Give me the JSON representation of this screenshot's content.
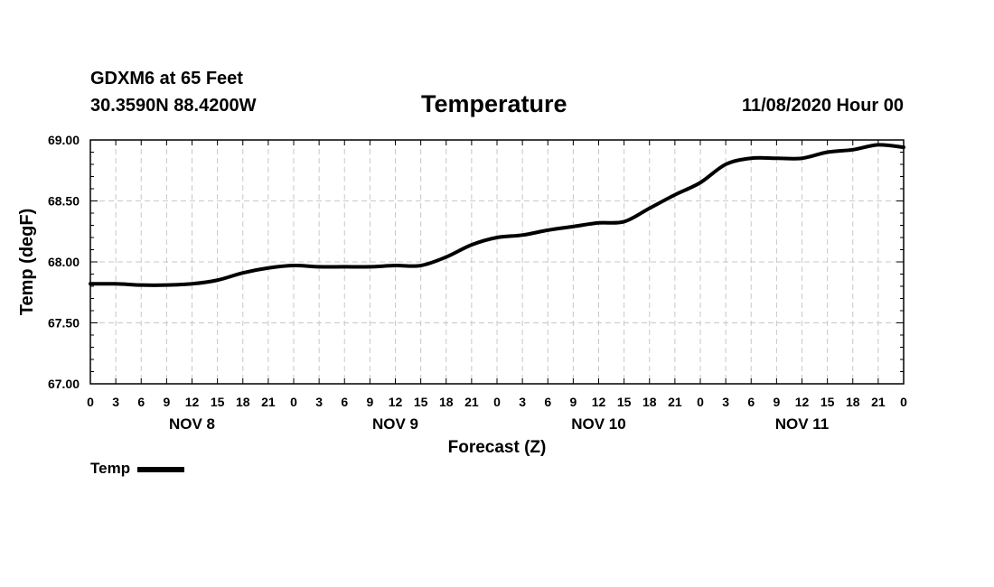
{
  "header": {
    "station": "GDXM6 at 65 Feet",
    "coords": "30.3590N 88.4200W",
    "title": "Temperature",
    "timestamp": "11/08/2020 Hour 00"
  },
  "legend": {
    "label": "Temp",
    "color": "#000000"
  },
  "chart_data": {
    "type": "line",
    "title": "Temperature",
    "xlabel": "Forecast (Z)",
    "ylabel": "Temp (degF)",
    "ylim": [
      67.0,
      69.0
    ],
    "y_ticks": [
      "69.00",
      "68.50",
      "68.00",
      "67.50",
      "67.00"
    ],
    "x_range_hours": [
      0,
      96
    ],
    "x_tick_labels": [
      "0",
      "3",
      "6",
      "9",
      "12",
      "15",
      "18",
      "21",
      "0",
      "3",
      "6",
      "9",
      "12",
      "15",
      "18",
      "21",
      "0",
      "3",
      "6",
      "9",
      "12",
      "15",
      "18",
      "21",
      "0",
      "3",
      "6",
      "9",
      "12",
      "15",
      "18",
      "21",
      "0"
    ],
    "day_labels": [
      {
        "label": "NOV 8",
        "hour": 12
      },
      {
        "label": "NOV 9",
        "hour": 36
      },
      {
        "label": "NOV 10",
        "hour": 60
      },
      {
        "label": "NOV 11",
        "hour": 84
      }
    ],
    "grid": true,
    "series": [
      {
        "name": "Temp",
        "color": "#000000",
        "x": [
          0,
          3,
          6,
          9,
          12,
          15,
          18,
          21,
          24,
          27,
          30,
          33,
          36,
          39,
          42,
          45,
          48,
          51,
          54,
          57,
          60,
          63,
          66,
          69,
          72,
          75,
          78,
          81,
          84,
          87,
          90,
          93,
          96
        ],
        "values": [
          67.82,
          67.82,
          67.81,
          67.81,
          67.82,
          67.85,
          67.91,
          67.95,
          67.97,
          67.96,
          67.96,
          67.96,
          67.97,
          67.97,
          68.04,
          68.14,
          68.2,
          68.22,
          68.26,
          68.29,
          68.32,
          68.33,
          68.44,
          68.55,
          68.65,
          68.8,
          68.85,
          68.85,
          68.85,
          68.9,
          68.92,
          68.96,
          68.94
        ]
      }
    ]
  }
}
